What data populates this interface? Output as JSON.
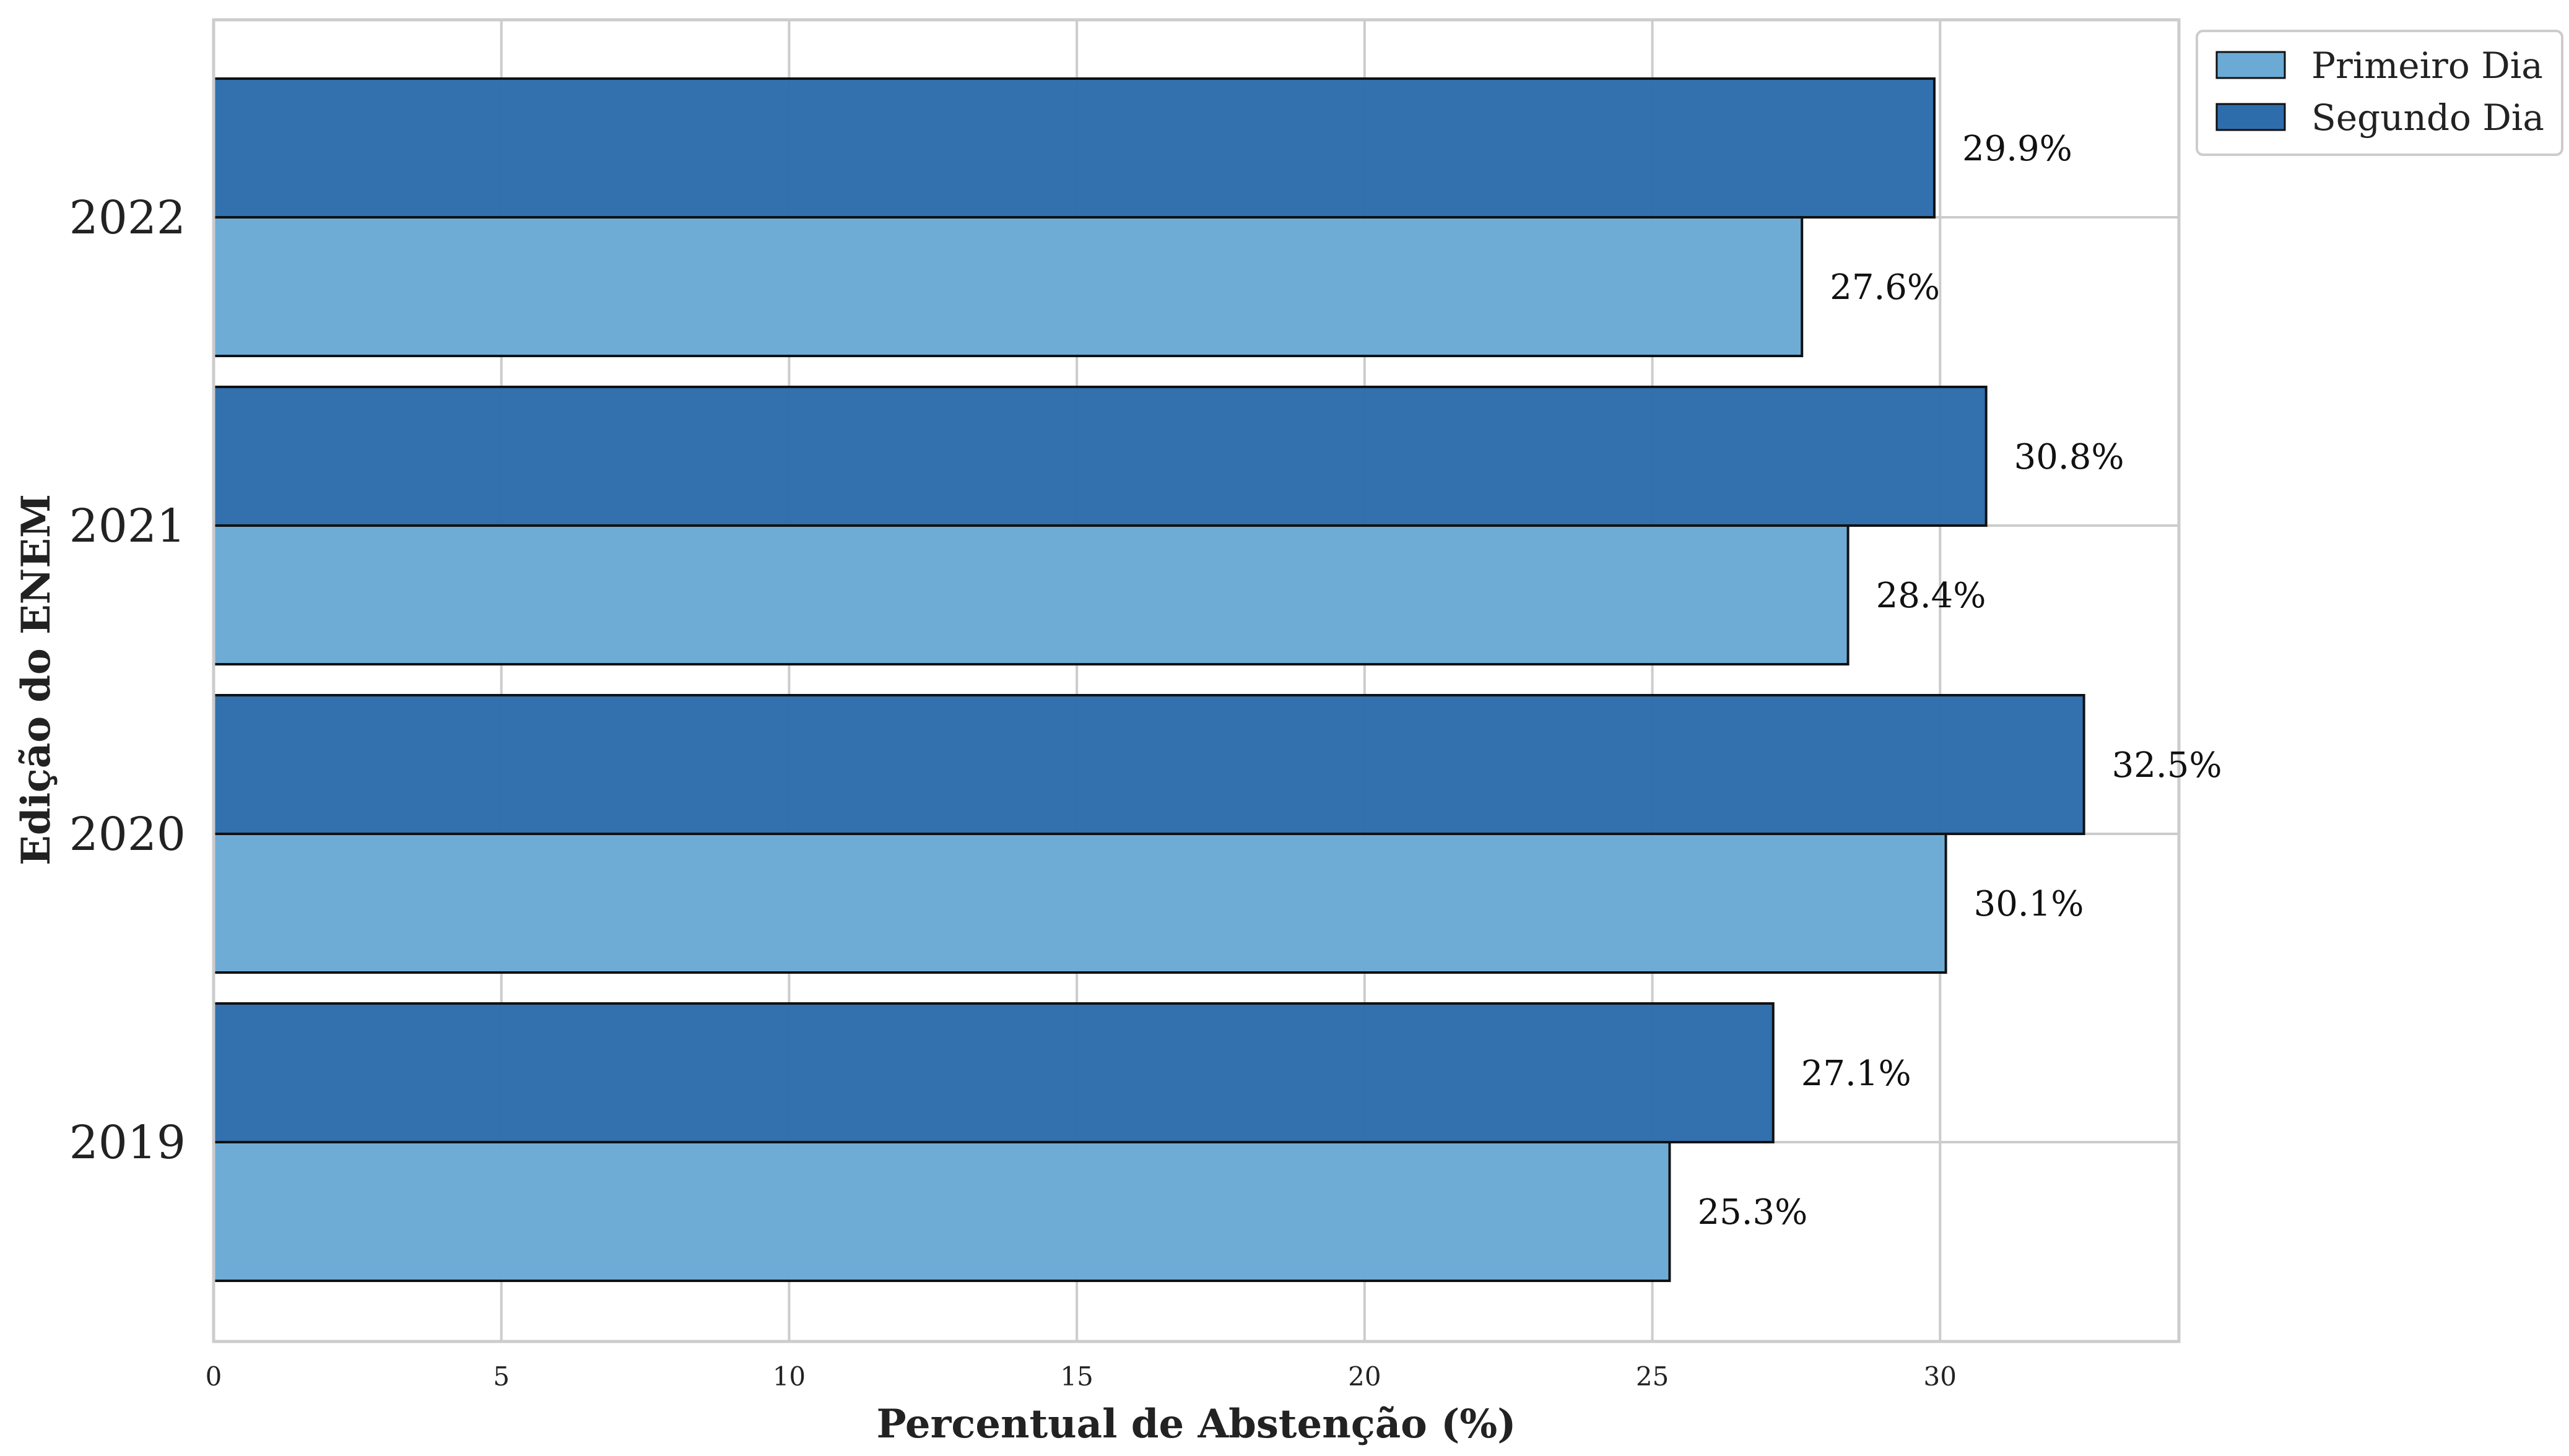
{
  "chart_data": {
    "type": "bar",
    "orientation": "horizontal",
    "categories": [
      "2019",
      "2020",
      "2021",
      "2022"
    ],
    "series": [
      {
        "name": "Primeiro Dia",
        "values": [
          25.3,
          30.1,
          28.4,
          27.6
        ],
        "color": "#6baad5"
      },
      {
        "name": "Segundo Dia",
        "values": [
          27.1,
          32.5,
          30.8,
          29.9
        ],
        "color": "#2e6dac"
      }
    ],
    "value_labels": [
      [
        "25.3%",
        "30.1%",
        "28.4%",
        "27.6%"
      ],
      [
        "27.1%",
        "32.5%",
        "30.8%",
        "29.9%"
      ]
    ],
    "xlabel": "Percentual de Abstenção (%)",
    "ylabel": "Edição do ENEM",
    "xlim": [
      0,
      34.15
    ],
    "xticks": [
      0,
      5,
      10,
      15,
      20,
      25,
      30
    ],
    "xtick_labels": [
      "0",
      "5",
      "10",
      "15",
      "20",
      "25",
      "30"
    ],
    "grid": true,
    "legend": {
      "placement": "outside-top-right",
      "entries": [
        "Primeiro Dia",
        "Segundo Dia"
      ]
    }
  }
}
